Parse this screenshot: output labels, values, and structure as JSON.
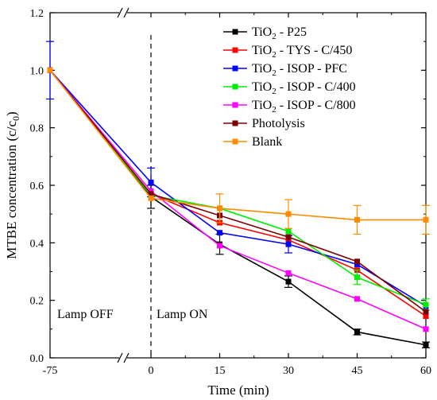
{
  "chart_data": {
    "type": "line",
    "xlabel": "Time (min)",
    "ylabel": "MTBE concentration (c/c",
    "ylabel_sub": "0",
    "ylabel_end": ")",
    "x_ticks": [
      -75,
      0,
      15,
      30,
      45,
      60
    ],
    "x_tick_labels": [
      "-75",
      "0",
      "15",
      "30",
      "45",
      "60"
    ],
    "x_axis_break": "//",
    "ylim": [
      0.0,
      1.2
    ],
    "y_ticks": [
      0.0,
      0.2,
      0.4,
      0.6,
      0.8,
      1.0,
      1.2
    ],
    "y_tick_labels": [
      "0.0",
      "0.2",
      "0.4",
      "0.6",
      "0.8",
      "1.0",
      "1.2"
    ],
    "grid": false,
    "legend_position": "top-right",
    "annotations": [
      {
        "id": "lamp_off",
        "text": "Lamp OFF"
      },
      {
        "id": "lamp_on",
        "text": "Lamp ON"
      }
    ],
    "divider_x": 0,
    "x": [
      -75,
      0,
      15,
      30,
      45,
      60
    ],
    "series": [
      {
        "name_main": "TiO",
        "name_sub": "2",
        "name_rest": " - P25",
        "color": "#000000",
        "values": [
          1.0,
          0.56,
          0.395,
          0.265,
          0.09,
          0.045
        ],
        "errors": [
          0,
          0.04,
          0.035,
          0.02,
          0.01,
          0.01
        ]
      },
      {
        "name_main": "TiO",
        "name_sub": "2",
        "name_rest": " - TYS - C/450",
        "color": "#ff0000",
        "values": [
          1.0,
          0.57,
          0.47,
          0.41,
          0.305,
          0.145
        ],
        "errors": [
          0,
          0.0,
          0.0,
          0.0,
          0.0,
          0.0
        ]
      },
      {
        "name_main": "TiO",
        "name_sub": "2",
        "name_rest": " - ISOP - PFC",
        "color": "#0000ff",
        "values": [
          1.0,
          0.61,
          0.435,
          0.395,
          0.325,
          0.18
        ],
        "errors": [
          0.1,
          0.05,
          0.0,
          0.03,
          0.0,
          0.0
        ]
      },
      {
        "name_main": "TiO",
        "name_sub": "2",
        "name_rest": " - ISOP - C/400",
        "color": "#00ee00",
        "values": [
          1.0,
          0.565,
          0.52,
          0.44,
          0.28,
          0.185
        ],
        "errors": [
          0,
          0.0,
          0.0,
          0.0,
          0.025,
          0.02
        ]
      },
      {
        "name_main": "TiO",
        "name_sub": "2",
        "name_rest": " - ISOP - C/800",
        "color": "#ff00ff",
        "values": [
          1.0,
          0.58,
          0.39,
          0.295,
          0.205,
          0.1
        ],
        "errors": [
          0,
          0.0,
          0.0,
          0.0,
          0.0,
          0.0
        ]
      },
      {
        "name_main": "Photolysis",
        "name_sub": "",
        "name_rest": "",
        "color": "#7b0000",
        "values": [
          1.0,
          0.57,
          0.495,
          0.42,
          0.335,
          0.16
        ],
        "errors": [
          0,
          0.0,
          0.0,
          0.0,
          0.0,
          0.0
        ]
      },
      {
        "name_main": "Blank",
        "name_sub": "",
        "name_rest": "",
        "color": "#ff8c00",
        "values": [
          1.0,
          0.555,
          0.52,
          0.5,
          0.48,
          0.48
        ],
        "errors": [
          0,
          0.0,
          0.05,
          0.05,
          0.05,
          0.05
        ]
      }
    ]
  }
}
